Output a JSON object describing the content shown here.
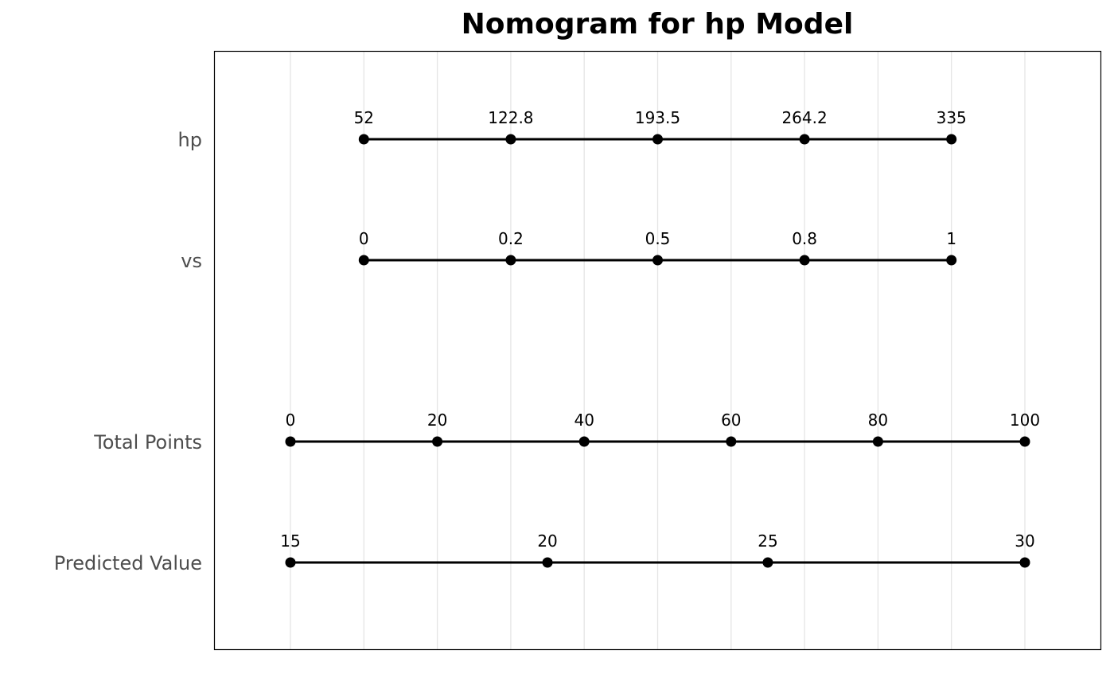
{
  "chart_data": {
    "type": "line",
    "title": "Nomogram for hp Model",
    "points_scale": [
      0,
      100
    ],
    "grid": "vertical",
    "rows": [
      {
        "label": "hp",
        "ticks": [
          {
            "label": "52",
            "points": 10
          },
          {
            "label": "122.8",
            "points": 30
          },
          {
            "label": "193.5",
            "points": 50
          },
          {
            "label": "264.2",
            "points": 70
          },
          {
            "label": "335",
            "points": 90
          }
        ]
      },
      {
        "label": "vs",
        "ticks": [
          {
            "label": "0",
            "points": 10
          },
          {
            "label": "0.2",
            "points": 30
          },
          {
            "label": "0.5",
            "points": 50
          },
          {
            "label": "0.8",
            "points": 70
          },
          {
            "label": "1",
            "points": 90
          }
        ]
      },
      {
        "label": "Total Points",
        "ticks": [
          {
            "label": "0",
            "points": 0
          },
          {
            "label": "20",
            "points": 20
          },
          {
            "label": "40",
            "points": 40
          },
          {
            "label": "60",
            "points": 60
          },
          {
            "label": "80",
            "points": 80
          },
          {
            "label": "100",
            "points": 100
          }
        ]
      },
      {
        "label": "Predicted Value",
        "ticks": [
          {
            "label": "15",
            "points": 0
          },
          {
            "label": "20",
            "points": 35
          },
          {
            "label": "25",
            "points": 65
          },
          {
            "label": "30",
            "points": 100
          }
        ]
      }
    ],
    "gridlines_points": [
      0,
      10,
      20,
      30,
      40,
      50,
      60,
      70,
      80,
      90,
      100
    ]
  }
}
